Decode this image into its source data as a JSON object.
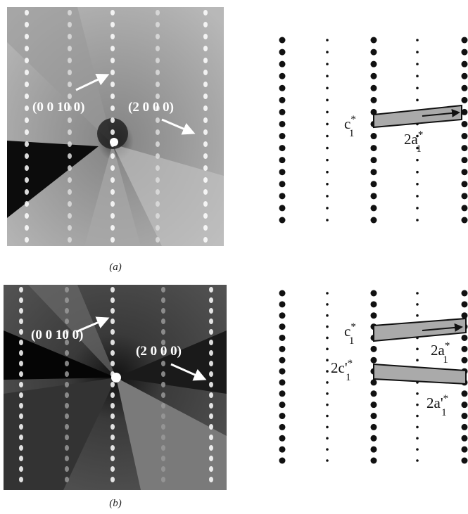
{
  "panels": [
    {
      "caption": "(a)",
      "image_labels": [
        "(0 0 10 0)",
        "(2 0 0 0)"
      ],
      "diagram_labels": [
        {
          "base": "c",
          "sup": "*",
          "sub": "1"
        },
        {
          "base": "2a",
          "sup": "*",
          "sub": "1"
        }
      ]
    },
    {
      "caption": "(b)",
      "image_labels": [
        "(0 0 10 0)",
        "(2 0 0 0)"
      ],
      "diagram_labels": [
        {
          "base": "c",
          "sup": "*",
          "sub": "1"
        },
        {
          "base": "2a",
          "sup": "*",
          "sub": "1"
        },
        {
          "base": "2c'",
          "sup": "*",
          "sub": "1"
        },
        {
          "base": "2a'",
          "sup": "*",
          "sub": "1"
        }
      ]
    }
  ]
}
